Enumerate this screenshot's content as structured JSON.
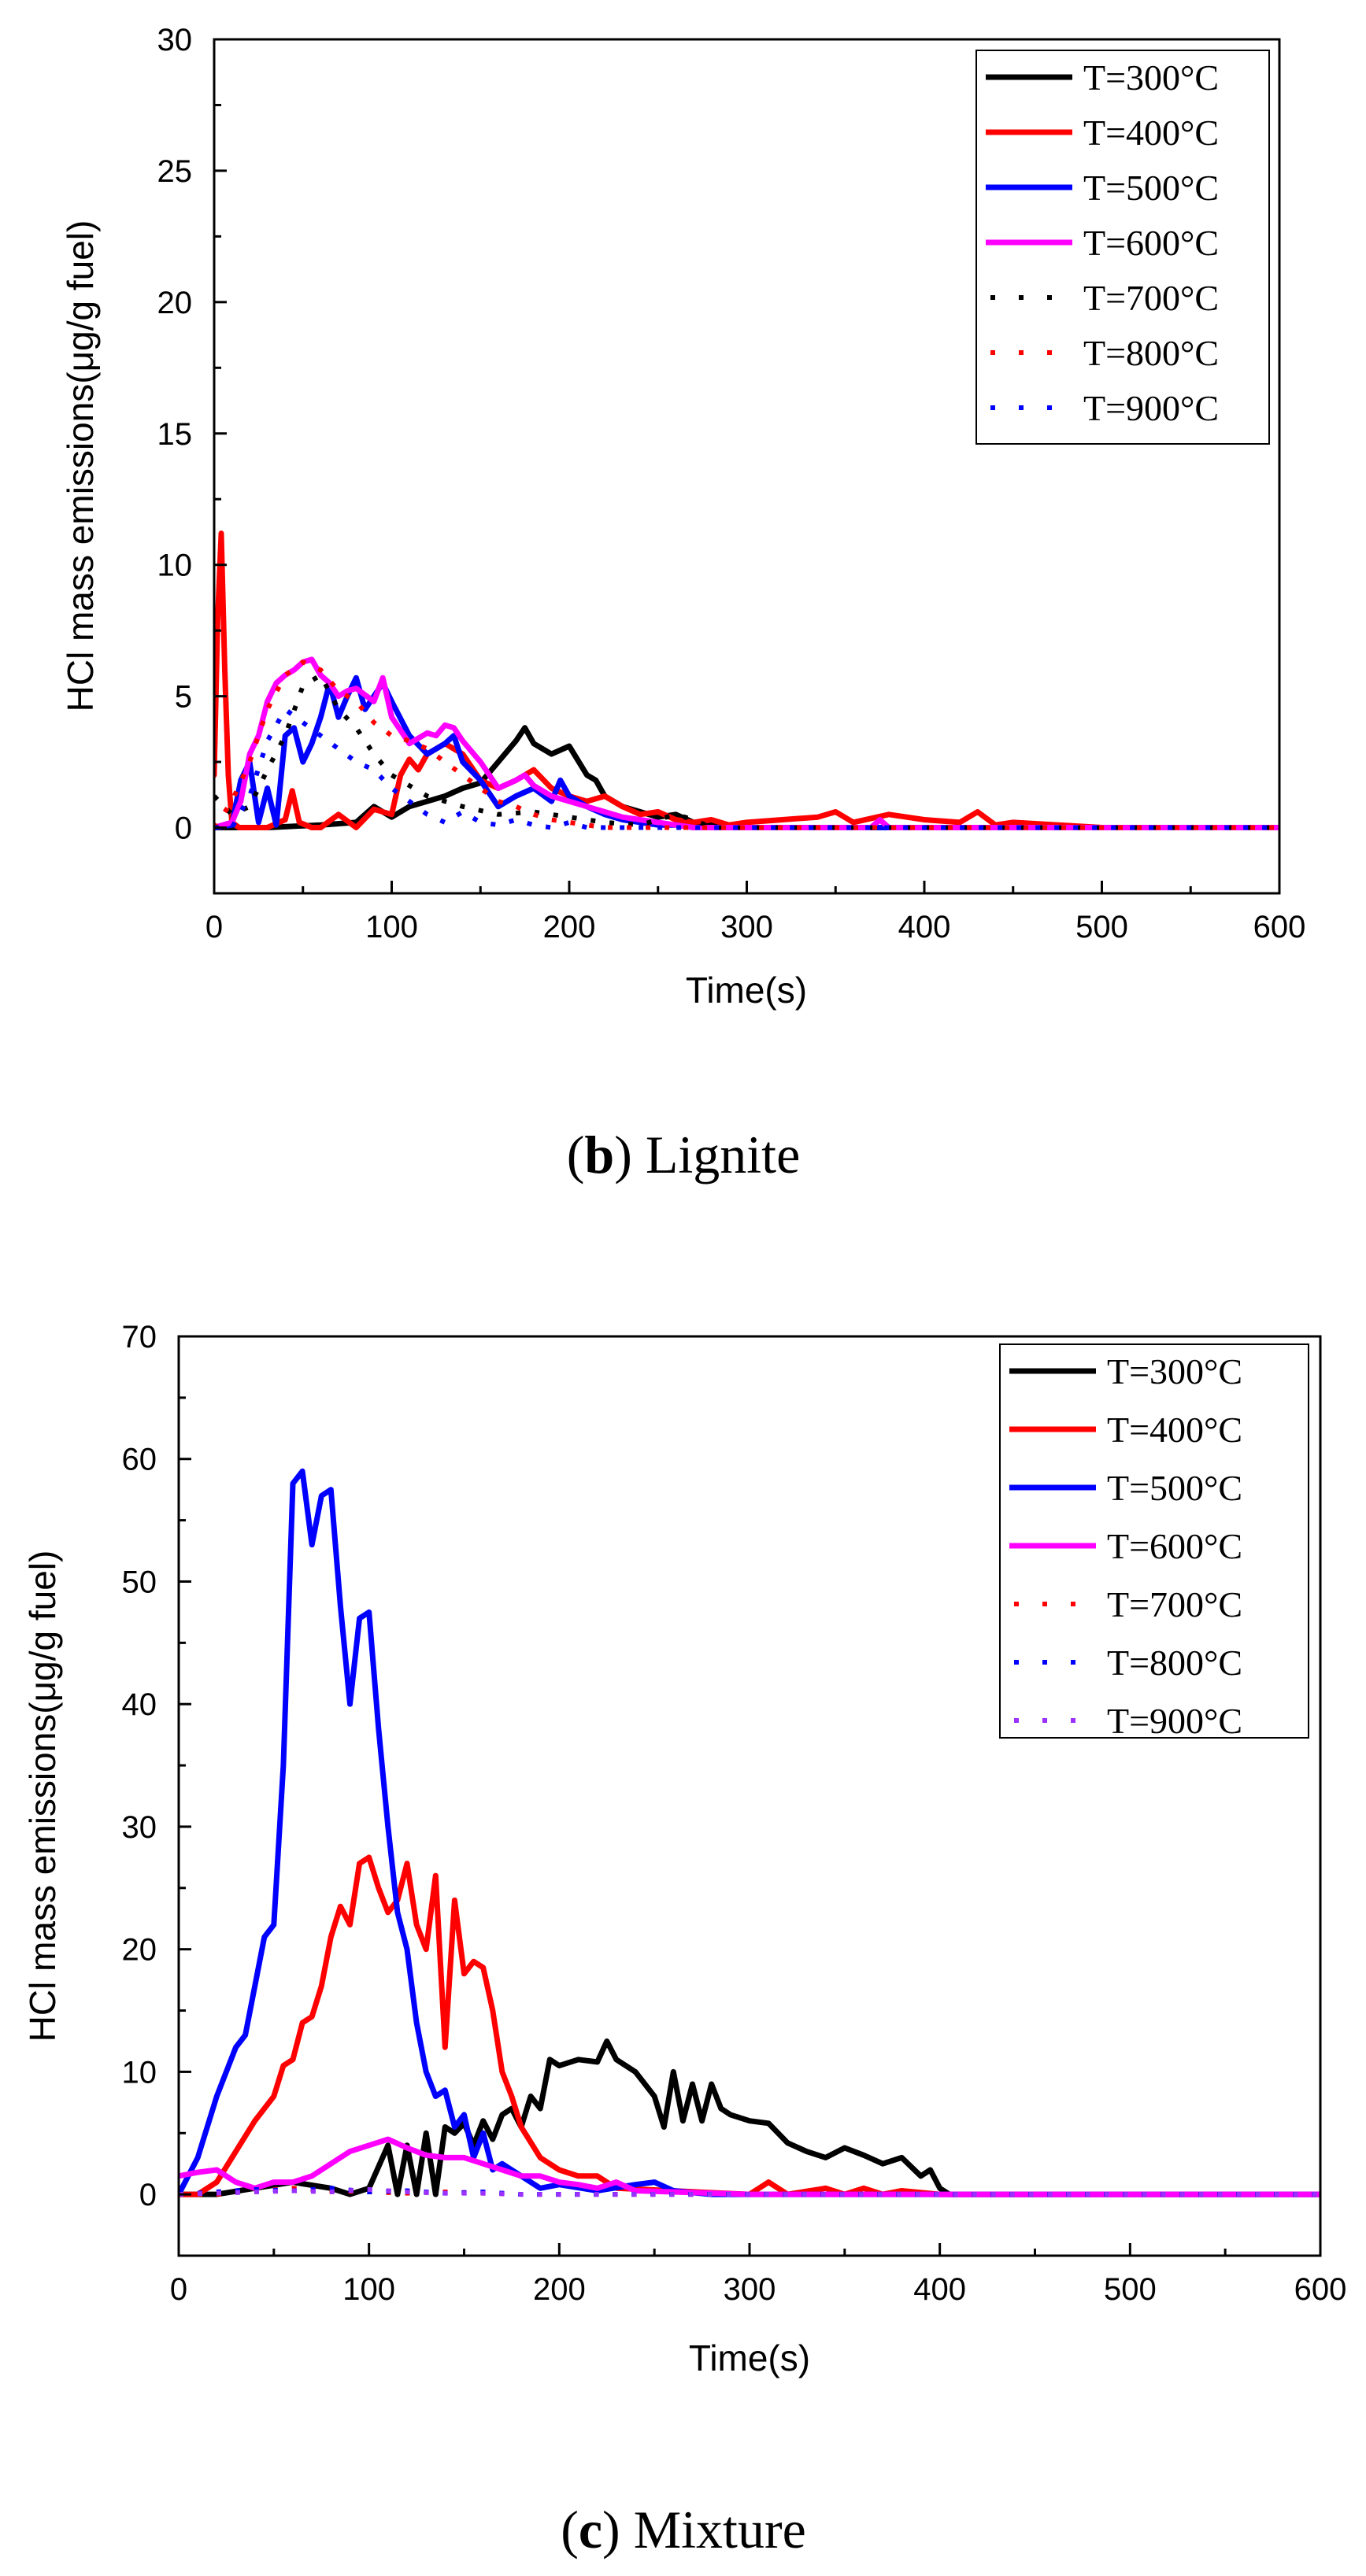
{
  "chart_data": [
    {
      "type": "line",
      "xlabel": "Time(s)",
      "ylabel": "HCl mass emissions(μg/g fuel)",
      "xlim": [
        0,
        600
      ],
      "ylim": [
        -2.5,
        30
      ],
      "xticks": [
        0,
        100,
        200,
        300,
        400,
        500,
        600
      ],
      "yticks": [
        0,
        5,
        10,
        15,
        20,
        25,
        30
      ],
      "grid": false,
      "legend_position": "top-right",
      "caption_letter": "b",
      "caption_text": "Lignite",
      "series": [
        {
          "name": "T=300°C",
          "color": "#000000",
          "style": "solid",
          "x": [
            0,
            30,
            60,
            80,
            90,
            100,
            110,
            120,
            130,
            140,
            150,
            160,
            170,
            175,
            180,
            190,
            200,
            210,
            215,
            220,
            230,
            240,
            250,
            260,
            270,
            280,
            300,
            320,
            350,
            400,
            450,
            500,
            550,
            600
          ],
          "y": [
            0,
            0,
            0.1,
            0.2,
            0.8,
            0.4,
            0.8,
            1,
            1.2,
            1.5,
            1.7,
            2.5,
            3.3,
            3.8,
            3.2,
            2.8,
            3.1,
            2,
            1.8,
            1.2,
            0.8,
            0.6,
            0.4,
            0.5,
            0.2,
            0.1,
            0,
            0,
            0,
            0,
            0,
            0,
            0,
            0
          ]
        },
        {
          "name": "T=400°C",
          "color": "#ff0000",
          "style": "solid",
          "x": [
            0,
            2,
            4,
            6,
            8,
            10,
            14,
            20,
            30,
            40,
            44,
            48,
            55,
            60,
            70,
            80,
            90,
            100,
            105,
            110,
            115,
            120,
            130,
            140,
            150,
            160,
            170,
            180,
            190,
            200,
            210,
            220,
            230,
            240,
            250,
            260,
            270,
            280,
            290,
            300,
            320,
            340,
            350,
            360,
            380,
            400,
            420,
            430,
            440,
            450,
            500,
            550,
            600
          ],
          "y": [
            2,
            8,
            11.2,
            6,
            2,
            0.2,
            0,
            0,
            0,
            0.3,
            1.4,
            0.2,
            0,
            0,
            0.5,
            0,
            0.7,
            0.5,
            2,
            2.6,
            2.2,
            2.8,
            3.2,
            2.8,
            1.8,
            1.5,
            1.8,
            2.2,
            1.5,
            1.2,
            1,
            1.2,
            0.8,
            0.5,
            0.6,
            0.3,
            0.2,
            0.3,
            0.1,
            0.2,
            0.3,
            0.4,
            0.6,
            0.2,
            0.5,
            0.3,
            0.2,
            0.6,
            0.1,
            0.2,
            0,
            0,
            0
          ]
        },
        {
          "name": "T=500°C",
          "color": "#0000ff",
          "style": "solid",
          "x": [
            0,
            10,
            15,
            20,
            25,
            30,
            35,
            40,
            45,
            50,
            55,
            60,
            65,
            70,
            75,
            80,
            85,
            90,
            95,
            100,
            110,
            120,
            130,
            135,
            140,
            150,
            160,
            170,
            180,
            190,
            195,
            200,
            210,
            220,
            230,
            240,
            250,
            260,
            270,
            280,
            300,
            350,
            400,
            450,
            500,
            550,
            600
          ],
          "y": [
            0,
            0.1,
            1.8,
            2.5,
            0.2,
            1.5,
            0.1,
            3.5,
            3.8,
            2.5,
            3.2,
            4.2,
            5.5,
            4.2,
            5,
            5.7,
            4.5,
            5,
            5.5,
            4.8,
            3.5,
            2.8,
            3.2,
            3.5,
            2.5,
            1.8,
            0.8,
            1.2,
            1.5,
            1,
            1.8,
            1.2,
            0.8,
            0.5,
            0.3,
            0.2,
            0.1,
            0.1,
            0,
            0,
            0,
            0,
            0,
            0,
            0,
            0,
            0
          ]
        },
        {
          "name": "T=600°C",
          "color": "#ff00ff",
          "style": "solid",
          "x": [
            0,
            10,
            15,
            20,
            25,
            30,
            35,
            40,
            45,
            50,
            55,
            60,
            65,
            70,
            75,
            80,
            90,
            95,
            100,
            110,
            120,
            125,
            130,
            135,
            140,
            150,
            160,
            170,
            175,
            180,
            190,
            200,
            210,
            220,
            230,
            240,
            250,
            260,
            270,
            300,
            350,
            370,
            375,
            380,
            400,
            450,
            500,
            600
          ],
          "y": [
            0,
            0.2,
            1,
            2.8,
            3.5,
            4.8,
            5.5,
            5.8,
            6,
            6.3,
            6.4,
            5.8,
            5.5,
            5,
            5.2,
            5.3,
            4.8,
            5.7,
            4.2,
            3.2,
            3.6,
            3.5,
            3.9,
            3.8,
            3.3,
            2.5,
            1.5,
            1.8,
            2,
            1.6,
            1.2,
            1,
            0.8,
            0.6,
            0.4,
            0.3,
            0.2,
            0.1,
            0,
            0,
            0,
            0,
            0.3,
            0,
            0,
            0,
            0,
            0
          ]
        },
        {
          "name": "T=700°C",
          "color": "#000000",
          "style": "dotted",
          "x": [
            0,
            10,
            20,
            30,
            40,
            50,
            60,
            70,
            80,
            90,
            100,
            120,
            140,
            160,
            180,
            200,
            220,
            240,
            260,
            270,
            280,
            300,
            600
          ],
          "y": [
            1.2,
            0.5,
            0.8,
            2.2,
            3.5,
            5.4,
            5.8,
            4.5,
            3.8,
            2.8,
            2,
            1.2,
            0.8,
            0.5,
            0.6,
            0.4,
            0.2,
            0.1,
            0.5,
            0.3,
            0,
            0,
            0
          ]
        },
        {
          "name": "T=800°C",
          "color": "#ff0000",
          "style": "dotted",
          "x": [
            0,
            10,
            20,
            30,
            40,
            50,
            60,
            70,
            80,
            90,
            100,
            110,
            120,
            130,
            140,
            150,
            160,
            170,
            180,
            190,
            200,
            210,
            220,
            300,
            600
          ],
          "y": [
            0,
            1,
            2.5,
            4.5,
            5.8,
            6.3,
            6,
            5.2,
            4.8,
            4,
            3.5,
            3.3,
            3,
            2.5,
            2,
            1.5,
            1,
            0.8,
            0.5,
            0.3,
            0.2,
            0.1,
            0,
            0,
            0
          ]
        },
        {
          "name": "T=900°C",
          "color": "#0000ff",
          "style": "dotted",
          "x": [
            0,
            10,
            20,
            30,
            40,
            50,
            60,
            70,
            80,
            90,
            100,
            110,
            120,
            130,
            140,
            150,
            160,
            170,
            180,
            190,
            200,
            210,
            300,
            600
          ],
          "y": [
            0,
            0,
            1.2,
            3.3,
            4.5,
            4,
            3.5,
            3,
            2.5,
            2.2,
            1.5,
            1,
            0.5,
            0.2,
            0.6,
            0.2,
            0.1,
            0.3,
            0.1,
            0,
            0.2,
            0,
            0,
            0
          ]
        }
      ]
    },
    {
      "type": "line",
      "xlabel": "Time(s)",
      "ylabel": "HCl mass emissions(μg/g fuel)",
      "xlim": [
        0,
        600
      ],
      "ylim": [
        -5,
        70
      ],
      "xticks": [
        0,
        100,
        200,
        300,
        400,
        500,
        600
      ],
      "yticks": [
        0,
        10,
        20,
        30,
        40,
        50,
        60,
        70
      ],
      "grid": false,
      "legend_position": "top-right",
      "caption_letter": "c",
      "caption_text": "Mixture",
      "series": [
        {
          "name": "T=300°C",
          "color": "#000000",
          "style": "solid",
          "x": [
            0,
            20,
            40,
            60,
            80,
            90,
            100,
            110,
            115,
            120,
            125,
            130,
            135,
            140,
            145,
            150,
            155,
            160,
            165,
            170,
            175,
            180,
            185,
            190,
            195,
            200,
            210,
            220,
            225,
            230,
            240,
            250,
            255,
            260,
            265,
            270,
            275,
            280,
            285,
            290,
            300,
            310,
            320,
            330,
            340,
            350,
            360,
            370,
            380,
            390,
            395,
            400,
            405,
            410,
            500,
            600
          ],
          "y": [
            0,
            0,
            0.5,
            1,
            0.5,
            0,
            0.5,
            4,
            0,
            4,
            0,
            5,
            0,
            5.5,
            5,
            5.8,
            4,
            6,
            4.5,
            6.5,
            7,
            5.5,
            8,
            7,
            11,
            10.5,
            11,
            10.8,
            12.5,
            11,
            10,
            8,
            5.5,
            10,
            6,
            9,
            6,
            9,
            7,
            6.5,
            6,
            5.8,
            4.2,
            3.5,
            3,
            3.8,
            3.2,
            2.5,
            3,
            1.5,
            2,
            0.5,
            0,
            0,
            0,
            0
          ]
        },
        {
          "name": "T=400°C",
          "color": "#ff0000",
          "style": "solid",
          "x": [
            0,
            10,
            20,
            30,
            40,
            50,
            55,
            60,
            65,
            70,
            75,
            80,
            85,
            90,
            95,
            100,
            105,
            110,
            115,
            120,
            125,
            130,
            135,
            140,
            145,
            150,
            155,
            160,
            165,
            170,
            175,
            180,
            190,
            200,
            210,
            220,
            230,
            300,
            310,
            320,
            340,
            350,
            360,
            370,
            380,
            400,
            450,
            500,
            600
          ],
          "y": [
            0,
            0,
            1,
            3.5,
            6,
            8,
            10.5,
            11,
            14,
            14.5,
            17,
            21,
            23.5,
            22,
            27,
            27.5,
            25,
            23,
            24,
            27,
            22,
            20,
            26,
            12,
            24,
            18,
            19,
            18.5,
            15,
            10,
            8,
            5.5,
            3,
            2,
            1.5,
            1.5,
            0.5,
            0,
            1,
            0,
            0.5,
            0,
            0.5,
            0,
            0.3,
            0,
            0,
            0,
            0
          ]
        },
        {
          "name": "T=500°C",
          "color": "#0000ff",
          "style": "solid",
          "x": [
            0,
            10,
            20,
            25,
            30,
            35,
            40,
            45,
            50,
            55,
            60,
            65,
            70,
            75,
            80,
            85,
            90,
            95,
            100,
            105,
            110,
            115,
            120,
            125,
            130,
            135,
            140,
            145,
            150,
            155,
            160,
            165,
            170,
            180,
            190,
            200,
            220,
            240,
            250,
            260,
            280,
            300,
            600
          ],
          "y": [
            0,
            3,
            8,
            10,
            12,
            13,
            17,
            21,
            22,
            35,
            58,
            59,
            53,
            57,
            57.5,
            48,
            40,
            47,
            47.5,
            38,
            30,
            23,
            20,
            14,
            10,
            8,
            8.5,
            5.5,
            6.5,
            3,
            5,
            2,
            2.5,
            1.5,
            0.5,
            0.8,
            0.3,
            0.8,
            1,
            0.3,
            0,
            0,
            0
          ]
        },
        {
          "name": "T=600°C",
          "color": "#ff00ff",
          "style": "solid",
          "x": [
            0,
            10,
            20,
            30,
            40,
            50,
            60,
            70,
            80,
            90,
            100,
            110,
            120,
            130,
            140,
            150,
            160,
            170,
            180,
            190,
            200,
            210,
            220,
            230,
            240,
            260,
            300,
            600
          ],
          "y": [
            1.5,
            1.8,
            2,
            1,
            0.5,
            1,
            1,
            1.5,
            2.5,
            3.5,
            4,
            4.5,
            3.8,
            3.2,
            3,
            3,
            2.5,
            2,
            1.5,
            1.5,
            1,
            0.8,
            0.5,
            1,
            0.3,
            0.2,
            0,
            0
          ]
        },
        {
          "name": "T=700°C",
          "color": "#ff0000",
          "style": "dotted",
          "x": [
            0,
            20,
            40,
            60,
            80,
            100,
            120,
            140,
            160,
            180,
            200,
            600
          ],
          "y": [
            0,
            0,
            0.3,
            0.5,
            0.3,
            0.2,
            0.1,
            0.2,
            0.1,
            0,
            0,
            0
          ]
        },
        {
          "name": "T=800°C",
          "color": "#0000ff",
          "style": "dotted",
          "x": [
            0,
            20,
            40,
            60,
            80,
            100,
            120,
            140,
            160,
            180,
            200,
            600
          ],
          "y": [
            0,
            0.2,
            0.4,
            0.3,
            0.5,
            0.2,
            0.3,
            0.1,
            0.2,
            0,
            0,
            0
          ]
        },
        {
          "name": "T=900°C",
          "color": "#9b30ff",
          "style": "dotted",
          "x": [
            0,
            20,
            40,
            60,
            80,
            100,
            120,
            140,
            160,
            180,
            200,
            600
          ],
          "y": [
            0,
            0.1,
            0.2,
            0.3,
            0.2,
            0.4,
            0.2,
            0.1,
            0.1,
            0,
            0,
            0
          ]
        }
      ]
    }
  ]
}
